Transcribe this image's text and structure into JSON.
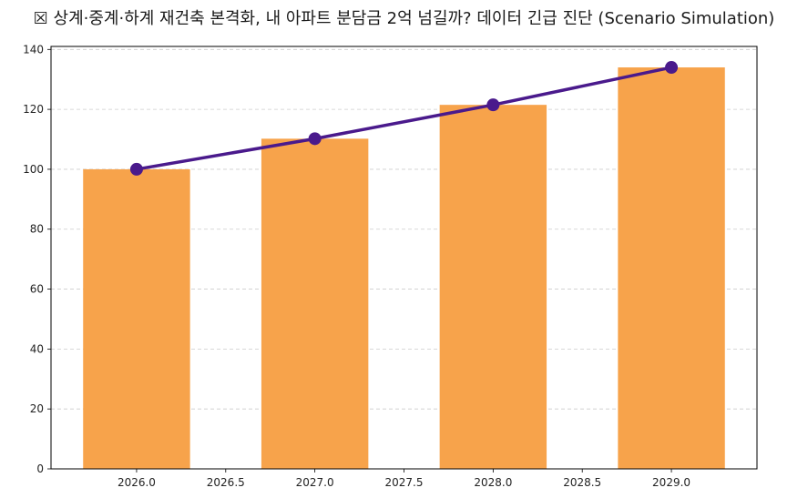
{
  "title": "☒ 상계·중계·하계 재건축 본격화, 내 아파트 분담금 2억 넘길까? 데이터 긴급 진단 (Scenario Simulation)",
  "chart_data": {
    "type": "bar",
    "title": "☒ 상계·중계·하계 재건축 본격화, 내 아파트 분담금 2억 넘길까? 데이터 긴급 진단 (Scenario Simulation)",
    "xlabel": "",
    "ylabel": "",
    "x": [
      2026.0,
      2027.0,
      2028.0,
      2029.0
    ],
    "series": [
      {
        "type": "bar",
        "values": [
          100.0,
          110.2,
          121.5,
          134.0
        ],
        "color": "#F7A34B"
      },
      {
        "type": "line",
        "values": [
          100.0,
          110.2,
          121.5,
          134.0
        ],
        "color": "#4A1A8C",
        "marker": "circle"
      }
    ],
    "xlim": [
      2025.52,
      2029.48
    ],
    "ylim": [
      0,
      141
    ],
    "x_ticks": [
      "2026.0",
      "2026.5",
      "2027.0",
      "2027.5",
      "2028.0",
      "2028.5",
      "2029.0"
    ],
    "y_ticks": [
      "0",
      "20",
      "40",
      "60",
      "80",
      "100",
      "120",
      "140"
    ],
    "grid": "y-dashed",
    "legend": "none"
  }
}
